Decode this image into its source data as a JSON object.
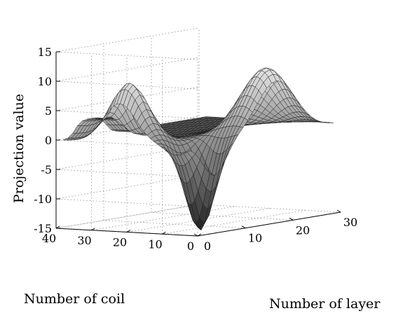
{
  "chart_data": {
    "type": "surface",
    "title": "",
    "xlabel": "Number of layer",
    "ylabel": "Number of coil",
    "zlabel": "Projection value",
    "xlim": [
      0,
      30
    ],
    "ylim": [
      0,
      40
    ],
    "zlim": [
      -15,
      15
    ],
    "x_ticks": [
      "0",
      "10",
      "20",
      "30"
    ],
    "y_ticks": [
      "0",
      "10",
      "20",
      "30",
      "40"
    ],
    "z_ticks": [
      "-15",
      "-10",
      "-5",
      "0",
      "5",
      "10",
      "15"
    ],
    "grid": true,
    "colormap": "gray",
    "surface_features": [
      {
        "name": "positive peak",
        "x": 18,
        "y": 5,
        "z": 11
      },
      {
        "name": "positive peak",
        "x": 2,
        "y": 22,
        "z": 10
      },
      {
        "name": "negative trough",
        "x": 5,
        "y": 6,
        "z": -15
      },
      {
        "name": "plateau",
        "x": 6,
        "y": 35,
        "z": 3
      }
    ]
  }
}
